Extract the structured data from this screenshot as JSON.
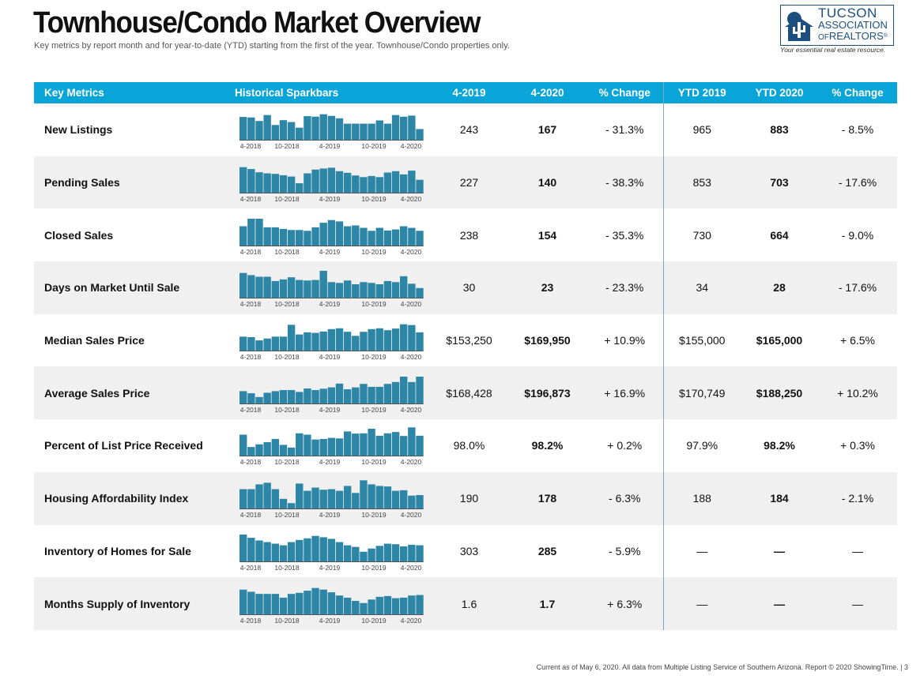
{
  "header": {
    "title": "Townhouse/Condo Market Overview",
    "subtitle": "Key metrics by report month and for year-to-date (YTD) starting from the first of the year. Townhouse/Condo properties only."
  },
  "logo": {
    "line1": "TUCSON",
    "line2": "ASSOCIATION",
    "line3_of": "OF",
    "line3": "REALTORS",
    "registered": "®",
    "tagline": "Your essential real estate resource."
  },
  "colors": {
    "header_bg": "#0aa5d8",
    "bar": "#2e86a6",
    "row_alt": "#f0f0f0"
  },
  "table": {
    "headers": [
      "Key Metrics",
      "Historical Sparkbars",
      "4-2019",
      "4-2020",
      "% Change",
      "YTD 2019",
      "YTD 2020",
      "% Change"
    ],
    "spark_ticks": [
      "4-2018",
      "10-2018",
      "4-2019",
      "10-2019",
      "4-2020"
    ],
    "rows": [
      {
        "metric": "New Listings",
        "v2019": "243",
        "v2020": "167",
        "pct": "- 31.3%",
        "ytd2019": "965",
        "ytd2020": "883",
        "ytdpct": "- 8.5%",
        "spark": [
          0.85,
          0.83,
          0.7,
          0.92,
          0.55,
          0.73,
          0.66,
          0.45,
          0.88,
          0.86,
          0.95,
          0.89,
          0.8,
          0.6,
          0.6,
          0.6,
          0.6,
          0.72,
          0.6,
          0.92,
          0.86,
          0.9,
          0.4
        ]
      },
      {
        "metric": "Pending Sales",
        "v2019": "227",
        "v2020": "140",
        "pct": "- 38.3%",
        "ytd2019": "853",
        "ytd2020": "703",
        "ytdpct": "- 17.6%",
        "spark": [
          0.95,
          0.88,
          0.76,
          0.72,
          0.7,
          0.65,
          0.6,
          0.35,
          0.72,
          0.86,
          0.9,
          0.93,
          0.8,
          0.74,
          0.64,
          0.58,
          0.62,
          0.58,
          0.75,
          0.8,
          0.68,
          0.82,
          0.48
        ]
      },
      {
        "metric": "Closed Sales",
        "v2019": "238",
        "v2020": "154",
        "pct": "- 35.3%",
        "ytd2019": "730",
        "ytd2020": "664",
        "ytdpct": "- 9.0%",
        "spark": [
          0.72,
          1.0,
          1.0,
          0.68,
          0.68,
          0.62,
          0.58,
          0.58,
          0.55,
          0.68,
          0.85,
          0.95,
          0.9,
          0.72,
          0.75,
          0.66,
          0.55,
          0.66,
          0.56,
          0.6,
          0.72,
          0.66,
          0.55
        ]
      },
      {
        "metric": "Days on Market Until Sale",
        "v2019": "30",
        "v2020": "23",
        "pct": "- 23.3%",
        "ytd2019": "34",
        "ytd2020": "28",
        "ytdpct": "- 17.6%",
        "spark": [
          0.92,
          0.84,
          0.78,
          0.78,
          0.62,
          0.68,
          0.76,
          0.66,
          0.64,
          0.66,
          1.0,
          0.58,
          0.55,
          0.64,
          0.5,
          0.58,
          0.55,
          0.5,
          0.62,
          0.58,
          0.8,
          0.52,
          0.36
        ]
      },
      {
        "metric": "Median Sales Price",
        "v2019": "$153,250",
        "v2020": "$169,950",
        "pct": "+ 10.9%",
        "ytd2019": "$155,000",
        "ytd2020": "$165,000",
        "ytdpct": "+ 6.5%",
        "spark": [
          0.52,
          0.5,
          0.38,
          0.45,
          0.52,
          0.52,
          0.96,
          0.6,
          0.68,
          0.66,
          0.71,
          0.8,
          0.83,
          0.7,
          0.55,
          0.7,
          0.8,
          0.83,
          0.76,
          0.82,
          0.98,
          0.95,
          0.68
        ]
      },
      {
        "metric": "Average Sales Price",
        "v2019": "$168,428",
        "v2020": "$196,873",
        "pct": "+ 16.9%",
        "ytd2019": "$170,749",
        "ytd2020": "$188,250",
        "ytdpct": "+ 10.2%",
        "spark": [
          0.46,
          0.38,
          0.24,
          0.4,
          0.46,
          0.5,
          0.5,
          0.43,
          0.56,
          0.5,
          0.55,
          0.6,
          0.74,
          0.53,
          0.6,
          0.73,
          0.62,
          0.62,
          0.73,
          0.8,
          1.0,
          0.8,
          1.0
        ]
      },
      {
        "metric": "Percent of List Price Received",
        "v2019": "98.0%",
        "v2020": "98.2%",
        "pct": "+ 0.2%",
        "ytd2019": "97.9%",
        "ytd2020": "98.2%",
        "ytdpct": "+ 0.3%",
        "spark": [
          0.78,
          0.32,
          0.42,
          0.5,
          0.62,
          0.4,
          0.3,
          0.83,
          0.78,
          0.6,
          0.62,
          0.66,
          0.64,
          0.9,
          0.82,
          0.83,
          1.0,
          0.74,
          0.83,
          0.88,
          0.73,
          1.2,
          0.74
        ]
      },
      {
        "metric": "Housing Affordability Index",
        "v2019": "190",
        "v2020": "178",
        "pct": "- 6.3%",
        "ytd2019": "188",
        "ytd2020": "184",
        "ytdpct": "- 2.1%",
        "spark": [
          0.72,
          0.72,
          0.9,
          0.96,
          0.72,
          0.36,
          0.2,
          0.93,
          0.66,
          0.78,
          0.7,
          0.72,
          0.66,
          0.84,
          0.58,
          1.06,
          0.9,
          0.84,
          0.82,
          0.66,
          0.68,
          0.48,
          0.5
        ]
      },
      {
        "metric": "Inventory of Homes for Sale",
        "v2019": "303",
        "v2020": "285",
        "pct": "- 5.9%",
        "ytd2019": "—",
        "ytd2020": "—",
        "ytdpct": "—",
        "spark": [
          1.0,
          0.88,
          0.78,
          0.72,
          0.66,
          0.6,
          0.72,
          0.8,
          0.86,
          0.95,
          0.9,
          0.84,
          0.72,
          0.6,
          0.54,
          0.36,
          0.48,
          0.58,
          0.66,
          0.64,
          0.56,
          0.62,
          0.6
        ]
      },
      {
        "metric": "Months Supply of Inventory",
        "v2019": "1.6",
        "v2020": "1.7",
        "pct": "+ 6.3%",
        "ytd2019": "—",
        "ytd2020": "—",
        "ytdpct": "—",
        "spark": [
          0.92,
          0.84,
          0.76,
          0.76,
          0.76,
          0.62,
          0.76,
          0.8,
          0.88,
          0.98,
          0.92,
          0.82,
          0.7,
          0.62,
          0.5,
          0.42,
          0.55,
          0.65,
          0.68,
          0.6,
          0.62,
          0.7,
          0.72
        ]
      }
    ]
  },
  "footer": {
    "text": "Current as of May 6, 2020. All data from Multiple Listing Service of Southern Arizona. Report © 2020 ShowingTime.",
    "separator": "|",
    "page": "3"
  }
}
